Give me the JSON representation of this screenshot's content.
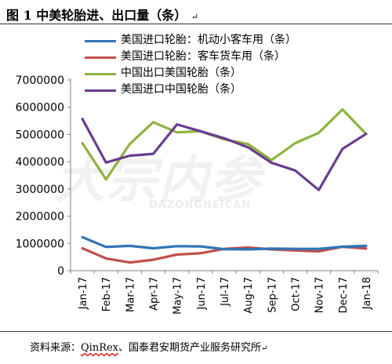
{
  "header": {
    "title": "图 1 中美轮胎进、出口量（条）",
    "mark": "↵"
  },
  "footer": {
    "source_prefix": "资料来源：",
    "source_brand": "QinRex",
    "source_rest": "、国泰君安期货产业服务研究所",
    "mark": "↵"
  },
  "watermark": {
    "main": "大宗内参",
    "sub": "DAZONGNEICAN"
  },
  "chart_data": {
    "type": "line",
    "categories": [
      "Jan-17",
      "Feb-17",
      "Mar-17",
      "Apr-17",
      "May-17",
      "Jun-17",
      "Jul-17",
      "Aug-17",
      "Sep-17",
      "Oct-17",
      "Nov-17",
      "Dec-17",
      "Jan-18"
    ],
    "ylim": [
      0,
      7000000
    ],
    "yticks": [
      "0",
      "1000000",
      "2000000",
      "3000000",
      "4000000",
      "5000000",
      "6000000",
      "7000000"
    ],
    "grid": false,
    "legend_position": "top",
    "series": [
      {
        "name": "美国进口轮胎：机动小客车用（条）",
        "color": "#2E75B6",
        "values": [
          1230000,
          870000,
          910000,
          820000,
          900000,
          890000,
          790000,
          780000,
          810000,
          800000,
          800000,
          880000,
          910000
        ]
      },
      {
        "name": "美国进口轮胎：客车货车用（条）",
        "color": "#C0504D",
        "values": [
          820000,
          450000,
          300000,
          400000,
          590000,
          640000,
          800000,
          850000,
          780000,
          740000,
          710000,
          880000,
          810000
        ]
      },
      {
        "name": "中国出口美国轮胎（条）",
        "color": "#8DB33F",
        "values": [
          4680000,
          3350000,
          4650000,
          5450000,
          5080000,
          5120000,
          4820000,
          4650000,
          4060000,
          4680000,
          5060000,
          5920000,
          5020000
        ]
      },
      {
        "name": "美国进口中国轮胎（条）",
        "color": "#6A3D8F",
        "values": [
          5570000,
          3970000,
          4220000,
          4290000,
          5370000,
          5120000,
          4860000,
          4530000,
          3960000,
          3680000,
          2960000,
          4470000,
          5020000
        ]
      }
    ]
  }
}
